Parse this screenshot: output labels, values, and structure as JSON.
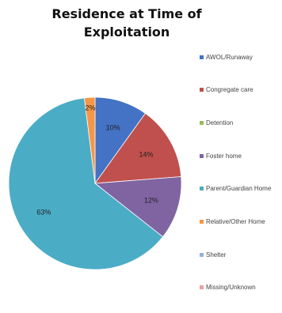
{
  "chart_data": {
    "type": "pie",
    "title": "Residence at Time of Exploitation",
    "legend_position": "right",
    "slices": [
      {
        "label": "AWOL/Runaway",
        "value": 10,
        "display": "10%",
        "color": "#4472c4"
      },
      {
        "label": "Congregate care",
        "value": 14,
        "display": "14%",
        "color": "#c0504d"
      },
      {
        "label": "Detention",
        "value": 0,
        "display": "",
        "color": "#9bbb59"
      },
      {
        "label": "Foster home",
        "value": 12,
        "display": "12%",
        "color": "#8064a2"
      },
      {
        "label": "Parent/Guardian Home",
        "value": 63,
        "display": "63%",
        "color": "#4bacc6"
      },
      {
        "label": "Relative/Other Home",
        "value": 2,
        "display": "2%",
        "color": "#f79646"
      },
      {
        "label": "Shelter",
        "value": 0,
        "display": "",
        "color": "#95b3d7"
      },
      {
        "label": "Missing/Unknown",
        "value": 0,
        "display": "",
        "color": "#e6a09e"
      }
    ]
  }
}
